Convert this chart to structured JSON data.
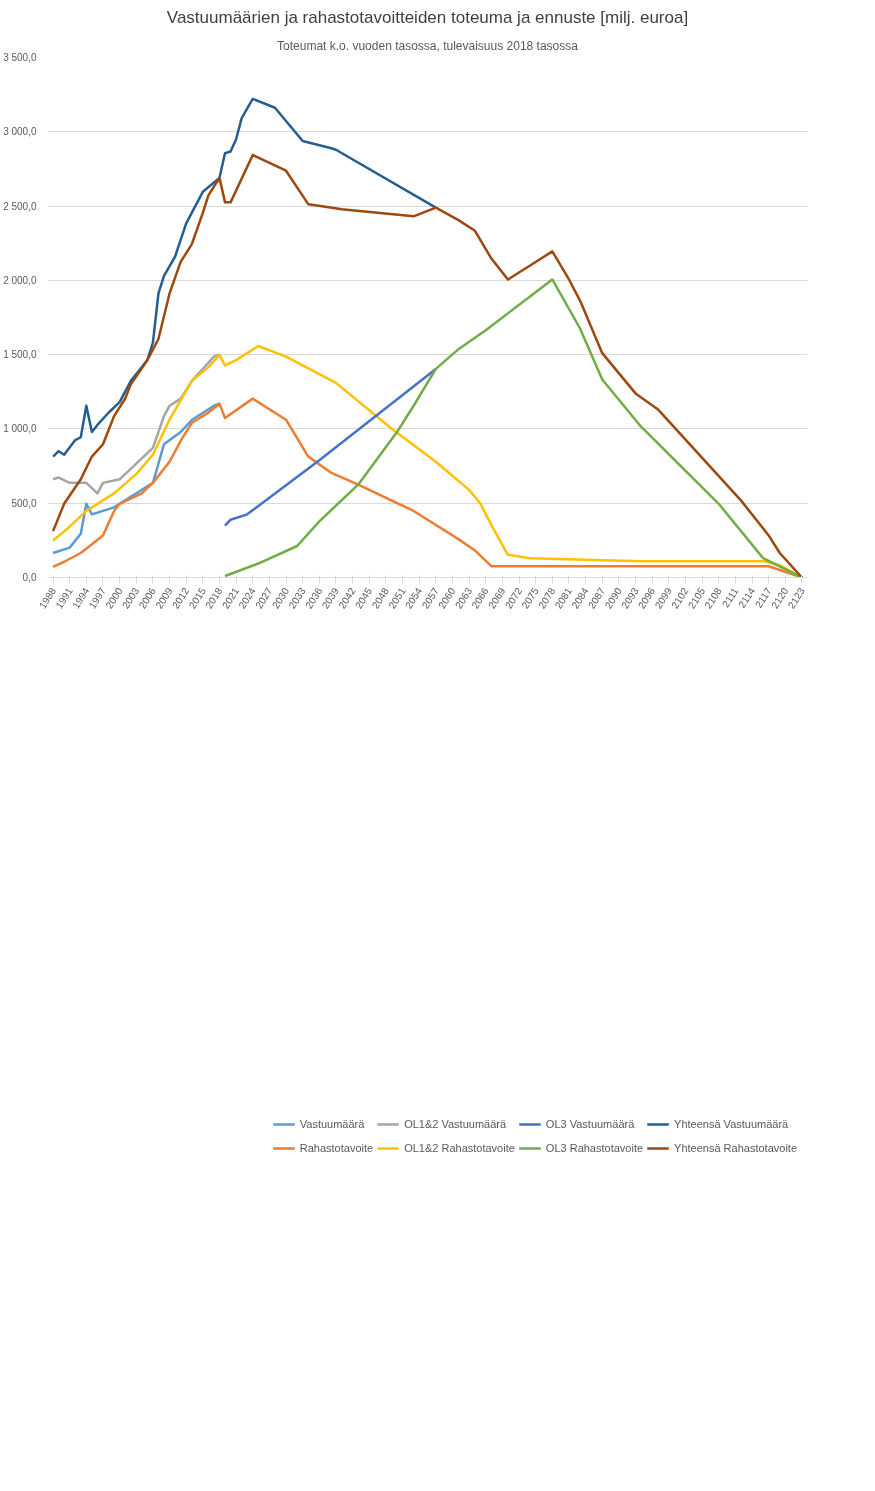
{
  "chart_data": {
    "type": "line",
    "title": "Vastuumäärien ja rahastotavoitteiden toteuma ja ennuste [milj. euroa]",
    "subtitle": "Toteumat k.o. vuoden tasossa, tulevaisuus 2018 tasossa",
    "xlim": [
      1987,
      2124
    ],
    "xticks": [
      1988,
      1991,
      1994,
      1997,
      2000,
      2003,
      2006,
      2009,
      2012,
      2015,
      2018,
      2021,
      2024,
      2027,
      2030,
      2033,
      2036,
      2039,
      2042,
      2045,
      2048,
      2051,
      2054,
      2057,
      2060,
      2063,
      2066,
      2069,
      2072,
      2075,
      2078,
      2081,
      2084,
      2087,
      2090,
      2093,
      2096,
      2099,
      2102,
      2105,
      2108,
      2111,
      2114,
      2117,
      2120,
      2123
    ],
    "ylim": [
      0,
      3500
    ],
    "yticks": [
      {
        "value": 0,
        "label": "0,0"
      },
      {
        "value": 500,
        "label": "500,0"
      },
      {
        "value": 1000,
        "label": "1 000,0"
      },
      {
        "value": 1500,
        "label": "1 500,0"
      },
      {
        "value": 2000,
        "label": "2 000,0"
      },
      {
        "value": 2500,
        "label": "2 500,0"
      },
      {
        "value": 3000,
        "label": "3 000,0"
      },
      {
        "value": 3500,
        "label": "3 500,0"
      }
    ],
    "grid": "y",
    "legend": "bottom",
    "marker": "none",
    "line_style": "solid",
    "series": [
      {
        "name": "Vastuumäärä",
        "color": "#5b9bd5",
        "x": [
          1988,
          1991,
          1993,
          1994,
          1995,
          1999,
          2000,
          2006,
          2008,
          2011,
          2013,
          2017,
          2018
        ],
        "values": [
          165,
          201,
          295,
          496,
          425,
          472,
          496,
          637,
          897,
          979,
          1060,
          1156,
          1170
        ]
      },
      {
        "name": "Rahastotavoite",
        "color": "#ed7d31",
        "x": [
          1988,
          1990,
          1993,
          1997,
          1999,
          2000,
          2004,
          2006,
          2009,
          2011,
          2013,
          2016,
          2018,
          2019,
          2024,
          2030,
          2034,
          2038,
          2043,
          2053,
          2061,
          2064,
          2067,
          2117,
          2123
        ],
        "values": [
          71,
          106,
          165,
          283,
          448,
          496,
          566,
          637,
          779,
          920,
          1040,
          1110,
          1170,
          1074,
          1204,
          1062,
          814,
          708,
          625,
          448,
          260,
          184,
          76,
          76,
          0
        ]
      },
      {
        "name": "OL1&2 Vastuumäärä",
        "color": "#a5a5a5",
        "x": [
          1988,
          1989,
          1991,
          1994,
          1996,
          1997,
          2000,
          2006,
          2008,
          2009,
          2011,
          2013,
          2017,
          2018
        ],
        "values": [
          661,
          673,
          637,
          637,
          566,
          637,
          661,
          873,
          1086,
          1156,
          1204,
          1322,
          1487,
          1500
        ]
      },
      {
        "name": "OL1&2 Rahastotavoite",
        "color": "#ffc000",
        "x": [
          1988,
          1991,
          1994,
          1999,
          2003,
          2006,
          2009,
          2011,
          2013,
          2016,
          2018,
          2019,
          2021,
          2025,
          2030,
          2036,
          2039,
          2049,
          2057,
          2063,
          2065,
          2067,
          2070,
          2074,
          2094,
          2116,
          2119,
          2123
        ],
        "values": [
          248,
          342,
          448,
          566,
          696,
          826,
          1062,
          1192,
          1322,
          1416,
          1499,
          1428,
          1463,
          1558,
          1487,
          1369,
          1310,
          1003,
          779,
          590,
          500,
          354,
          153,
          130,
          110,
          110,
          83,
          0
        ]
      },
      {
        "name": "OL3 Vastuumäärä",
        "color": "#4472c4",
        "x": [
          2019,
          2020,
          2023,
          2036,
          2057
        ],
        "values": [
          349,
          389,
          425,
          790,
          1404
        ]
      },
      {
        "name": "OL3 Rahastotavoite",
        "color": "#70ad47",
        "x": [
          2019,
          2025,
          2032,
          2036,
          2043,
          2050,
          2053,
          2057,
          2061,
          2066,
          2078,
          2083,
          2087,
          2094,
          2108,
          2116,
          2123
        ],
        "values": [
          10,
          94,
          212,
          378,
          625,
          979,
          1156,
          1404,
          1534,
          1664,
          2006,
          1676,
          1333,
          1015,
          496,
          130,
          0
        ]
      },
      {
        "name": "Yhteensä Vastuumäärä",
        "color": "#255e91",
        "x": [
          1988,
          1989,
          1990,
          1992,
          1993,
          1994,
          1995,
          1996,
          1998,
          2000,
          2002,
          2005,
          2006,
          2007,
          2008,
          2010,
          2012,
          2015,
          2018,
          2019,
          2020,
          2021,
          2022,
          2024,
          2028,
          2033,
          2038,
          2039,
          2057
        ],
        "values": [
          814,
          850,
          826,
          925,
          944,
          1156,
          979,
          1027,
          1109,
          1180,
          1322,
          1463,
          1581,
          1912,
          2030,
          2160,
          2384,
          2596,
          2690,
          2856,
          2867,
          2950,
          3092,
          3221,
          3162,
          2938,
          2891,
          2879,
          2490
        ]
      },
      {
        "name": "Yhteensä Rahastotavoite",
        "color": "#9e480e",
        "x": [
          1988,
          1990,
          1993,
          1995,
          1997,
          1999,
          2001,
          2002,
          2005,
          2007,
          2009,
          2011,
          2013,
          2015,
          2016,
          2018,
          2019,
          2020,
          2024,
          2030,
          2034,
          2038,
          2040,
          2053,
          2057,
          2061,
          2064,
          2067,
          2070,
          2074,
          2078,
          2081,
          2083,
          2087,
          2093,
          2097,
          2112,
          2117,
          2119,
          2123
        ],
        "values": [
          312,
          496,
          661,
          814,
          897,
          1086,
          1204,
          1298,
          1463,
          1605,
          1912,
          2124,
          2242,
          2454,
          2572,
          2690,
          2525,
          2525,
          2844,
          2738,
          2513,
          2490,
          2478,
          2431,
          2490,
          2407,
          2336,
          2148,
          2006,
          2100,
          2195,
          2006,
          1864,
          1510,
          1239,
          1133,
          519,
          283,
          165,
          0
        ]
      }
    ]
  }
}
